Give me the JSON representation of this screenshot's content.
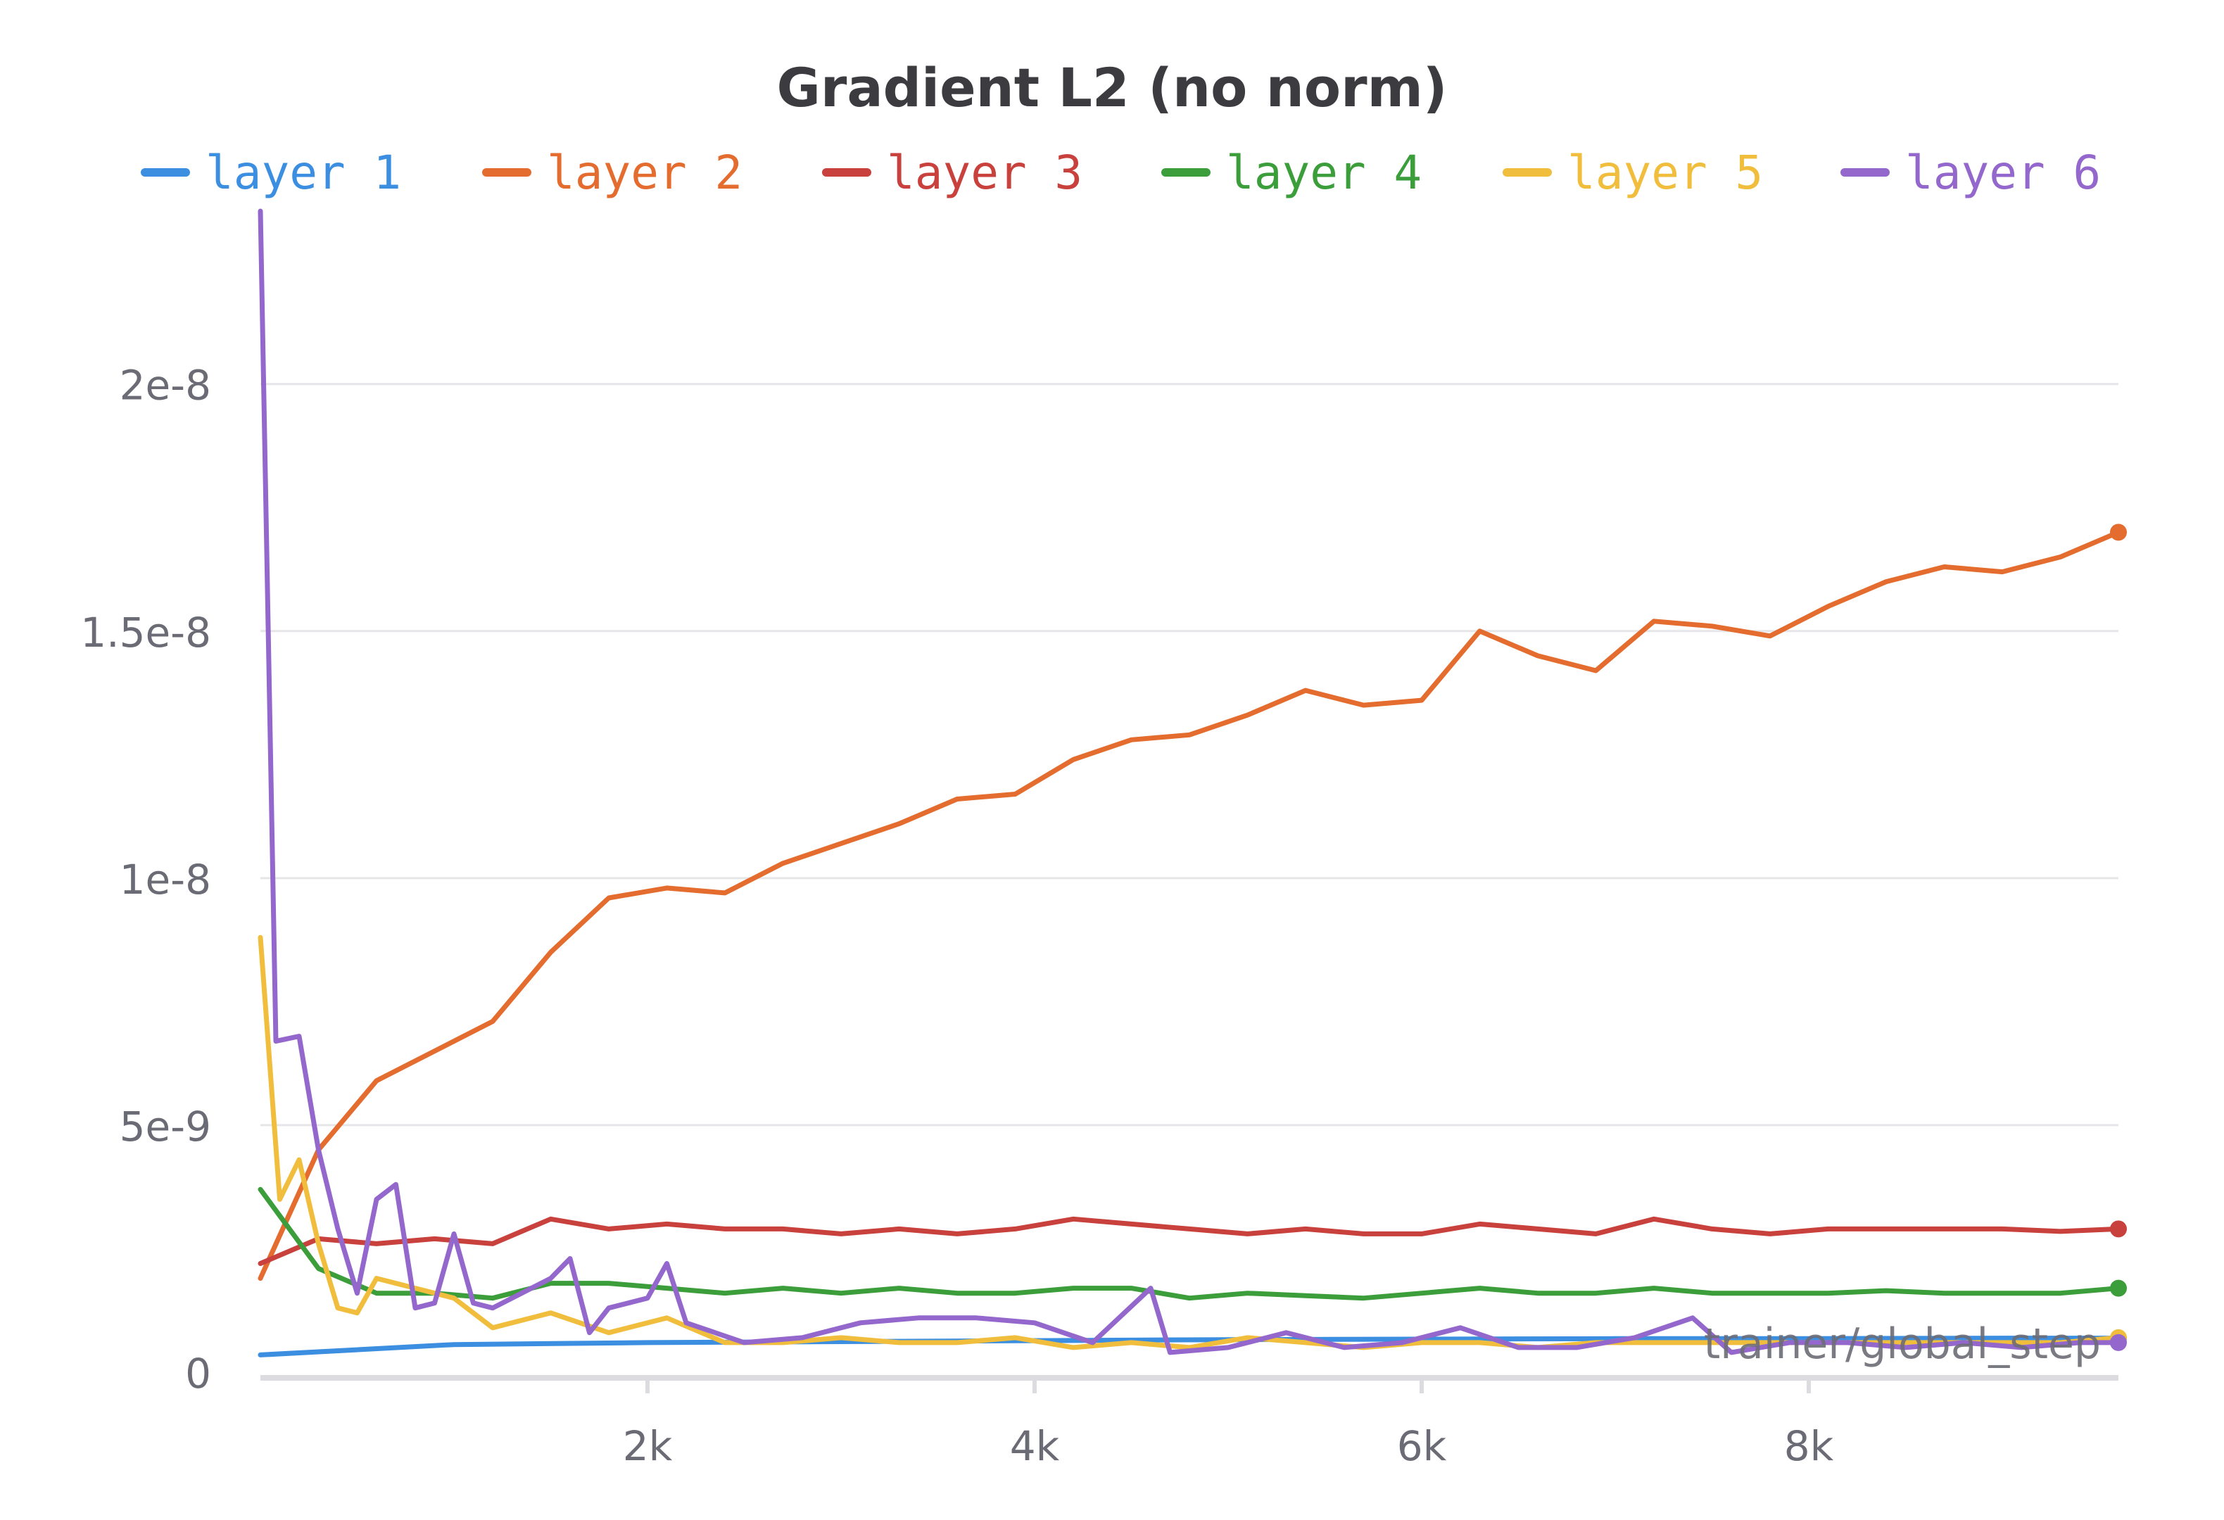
{
  "chart_data": {
    "type": "line",
    "title": "Gradient L2 (no norm)",
    "xlabel": "trainer/global_step",
    "ylabel": "",
    "xlim": [
      0,
      9600
    ],
    "ylim": [
      0,
      2.35e-08
    ],
    "x_ticks": [
      2000,
      4000,
      6000,
      8000
    ],
    "x_tick_labels": [
      "2k",
      "4k",
      "6k",
      "8k"
    ],
    "y_ticks": [
      0,
      5e-09,
      1e-08,
      1.5e-08,
      2e-08
    ],
    "y_tick_labels": [
      "0",
      "5e-9",
      "1e-8",
      "1.5e-8",
      "2e-8"
    ],
    "grid": "horizontal",
    "legend": "top",
    "end_markers": true,
    "series": [
      {
        "name": "layer 1",
        "color": "#3b8ee0",
        "x": [
          0,
          1000,
          2000,
          3000,
          4000,
          5000,
          6000,
          7000,
          8000,
          9000,
          9600
        ],
        "y": [
          3.5e-10,
          5.6e-10,
          6e-10,
          6.2e-10,
          6.4e-10,
          6.6e-10,
          6.7e-10,
          6.8e-10,
          6.8e-10,
          6.9e-10,
          6.9e-10
        ]
      },
      {
        "name": "layer 2",
        "color": "#e36c2e",
        "x": [
          0,
          300,
          600,
          900,
          1200,
          1500,
          1800,
          2100,
          2400,
          2700,
          3000,
          3300,
          3600,
          3900,
          4200,
          4500,
          4800,
          5100,
          5400,
          5700,
          6000,
          6300,
          6600,
          6900,
          7200,
          7500,
          7800,
          8100,
          8400,
          8700,
          9000,
          9300,
          9600
        ],
        "y": [
          1.9e-09,
          4.5e-09,
          5.9e-09,
          6.5e-09,
          7.1e-09,
          8.5e-09,
          9.6e-09,
          9.8e-09,
          9.7e-09,
          1.03e-08,
          1.07e-08,
          1.11e-08,
          1.16e-08,
          1.17e-08,
          1.24e-08,
          1.28e-08,
          1.29e-08,
          1.33e-08,
          1.38e-08,
          1.35e-08,
          1.36e-08,
          1.5e-08,
          1.45e-08,
          1.42e-08,
          1.52e-08,
          1.51e-08,
          1.49e-08,
          1.55e-08,
          1.6e-08,
          1.63e-08,
          1.62e-08,
          1.65e-08,
          1.7e-08
        ]
      },
      {
        "name": "layer 3",
        "color": "#c8413c",
        "x": [
          0,
          300,
          600,
          900,
          1200,
          1500,
          1800,
          2100,
          2400,
          2700,
          3000,
          3300,
          3600,
          3900,
          4200,
          4500,
          4800,
          5100,
          5400,
          5700,
          6000,
          6300,
          6600,
          6900,
          7200,
          7500,
          7800,
          8100,
          8400,
          8700,
          9000,
          9300,
          9600
        ],
        "y": [
          2.2e-09,
          2.7e-09,
          2.6e-09,
          2.7e-09,
          2.6e-09,
          3.1e-09,
          2.9e-09,
          3e-09,
          2.9e-09,
          2.9e-09,
          2.8e-09,
          2.9e-09,
          2.8e-09,
          2.9e-09,
          3.1e-09,
          3e-09,
          2.9e-09,
          2.8e-09,
          2.9e-09,
          2.8e-09,
          2.8e-09,
          3e-09,
          2.9e-09,
          2.8e-09,
          3.1e-09,
          2.9e-09,
          2.8e-09,
          2.9e-09,
          2.9e-09,
          2.9e-09,
          2.9e-09,
          2.85e-09,
          2.9e-09
        ]
      },
      {
        "name": "layer 4",
        "color": "#3b9e3b",
        "x": [
          0,
          300,
          600,
          900,
          1200,
          1500,
          1800,
          2100,
          2400,
          2700,
          3000,
          3300,
          3600,
          3900,
          4200,
          4500,
          4800,
          5100,
          5400,
          5700,
          6000,
          6300,
          6600,
          6900,
          7200,
          7500,
          7800,
          8100,
          8400,
          8700,
          9000,
          9300,
          9600
        ],
        "y": [
          3.7e-09,
          2.1e-09,
          1.6e-09,
          1.6e-09,
          1.5e-09,
          1.8e-09,
          1.8e-09,
          1.7e-09,
          1.6e-09,
          1.7e-09,
          1.6e-09,
          1.7e-09,
          1.6e-09,
          1.6e-09,
          1.7e-09,
          1.7e-09,
          1.5e-09,
          1.6e-09,
          1.55e-09,
          1.5e-09,
          1.6e-09,
          1.7e-09,
          1.6e-09,
          1.6e-09,
          1.7e-09,
          1.6e-09,
          1.6e-09,
          1.6e-09,
          1.65e-09,
          1.6e-09,
          1.6e-09,
          1.6e-09,
          1.7e-09
        ]
      },
      {
        "name": "layer 5",
        "color": "#f0be3c",
        "x": [
          0,
          100,
          200,
          300,
          400,
          500,
          600,
          800,
          1000,
          1200,
          1500,
          1800,
          2100,
          2400,
          2700,
          3000,
          3300,
          3600,
          3900,
          4200,
          4500,
          4800,
          5100,
          5400,
          5700,
          6000,
          6300,
          6600,
          6900,
          7200,
          7500,
          7800,
          8100,
          8400,
          8700,
          9000,
          9300,
          9600
        ],
        "y": [
          8.8e-09,
          3.5e-09,
          4.3e-09,
          2.6e-09,
          1.3e-09,
          1.2e-09,
          1.9e-09,
          1.7e-09,
          1.5e-09,
          9e-10,
          1.2e-09,
          8e-10,
          1.1e-09,
          6e-10,
          6e-10,
          7e-10,
          6e-10,
          6e-10,
          7e-10,
          5e-10,
          6e-10,
          5e-10,
          7e-10,
          6e-10,
          5e-10,
          6e-10,
          6e-10,
          5e-10,
          6e-10,
          6e-10,
          6e-10,
          6e-10,
          6e-10,
          6e-10,
          6e-10,
          6e-10,
          6e-10,
          7e-10
        ]
      },
      {
        "name": "layer 6",
        "color": "#9467cc",
        "x": [
          0,
          80,
          200,
          300,
          400,
          500,
          600,
          700,
          800,
          900,
          1000,
          1100,
          1200,
          1500,
          1600,
          1700,
          1800,
          2000,
          2100,
          2200,
          2500,
          2800,
          3100,
          3400,
          3700,
          4000,
          4300,
          4600,
          4700,
          5000,
          5300,
          5600,
          5900,
          6200,
          6500,
          6800,
          7100,
          7400,
          7600,
          7900,
          8200,
          8500,
          8800,
          9100,
          9400,
          9600
        ],
        "y": [
          2.35e-08,
          6.7e-09,
          6.8e-09,
          4.5e-09,
          2.9e-09,
          1.6e-09,
          3.5e-09,
          3.8e-09,
          1.3e-09,
          1.4e-09,
          2.8e-09,
          1.4e-09,
          1.3e-09,
          1.9e-09,
          2.3e-09,
          8e-10,
          1.3e-09,
          1.5e-09,
          2.2e-09,
          1e-09,
          6e-10,
          7e-10,
          1e-09,
          1.1e-09,
          1.1e-09,
          1e-09,
          6e-10,
          1.7e-09,
          4e-10,
          5e-10,
          8e-10,
          5e-10,
          6e-10,
          9e-10,
          5e-10,
          5e-10,
          7e-10,
          1.1e-09,
          4e-10,
          6e-10,
          6e-10,
          5e-10,
          6e-10,
          5e-10,
          6e-10,
          6e-10
        ]
      }
    ]
  }
}
